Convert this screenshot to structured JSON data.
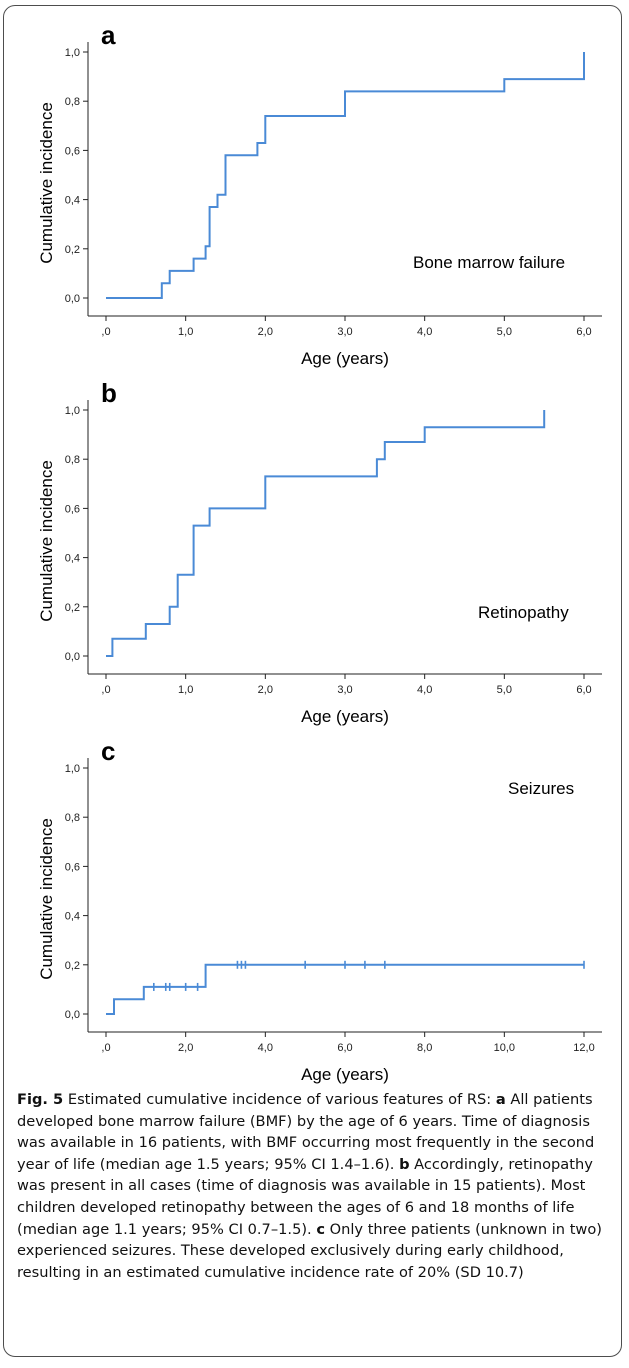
{
  "figure": {
    "caption": {
      "label": "Fig. 5",
      "segments": [
        {
          "text": " Estimated cumulative incidence of various features of RS: "
        },
        {
          "text": "a",
          "bold": true
        },
        {
          "text": " All patients developed bone marrow failure (BMF) by the age of 6 years. Time of diagnosis was available in 16 patients, with BMF occurring most frequently in the second year of life (median age 1.5 years; 95% CI 1.4–1.6). "
        },
        {
          "text": "b",
          "bold": true
        },
        {
          "text": " Accordingly, retinopathy was present in all cases (time of diagnosis was available in 15 patients). Most children developed retinopathy between the ages of 6 and 18 months of life (median age 1.1 years; 95% CI 0.7–1.5). "
        },
        {
          "text": "c",
          "bold": true
        },
        {
          "text": " Only three patients (unknown in two) experienced seizures. These developed exclusively during early childhood, resulting in an estimated cumulative incidence rate of 20% (SD 10.7)"
        }
      ]
    }
  },
  "chart_data": [
    {
      "type": "line",
      "panel_label": "a",
      "annotation": "Bone marrow failure",
      "xlabel": "Age (years)",
      "ylabel": "Cumulative incidence",
      "xlim": [
        0,
        6
      ],
      "ylim": [
        0,
        1
      ],
      "xticks": [
        ",0",
        "1,0",
        "2,0",
        "3,0",
        "4,0",
        "5,0",
        "6,0"
      ],
      "yticks": [
        "0,0",
        "0,2",
        "0,4",
        "0,6",
        "0,8",
        "1,0"
      ],
      "step": true,
      "series": [
        {
          "color": "#4a8ad6",
          "x": [
            0,
            0.7,
            0.7,
            0.8,
            0.8,
            1.1,
            1.1,
            1.25,
            1.25,
            1.3,
            1.3,
            1.4,
            1.4,
            1.5,
            1.5,
            1.9,
            1.9,
            2.0,
            2.0,
            3.0,
            3.0,
            5.0,
            5.0,
            6.0,
            6.0
          ],
          "y": [
            0,
            0,
            0.06,
            0.06,
            0.11,
            0.11,
            0.16,
            0.16,
            0.21,
            0.21,
            0.37,
            0.37,
            0.42,
            0.42,
            0.58,
            0.58,
            0.63,
            0.63,
            0.74,
            0.74,
            0.84,
            0.84,
            0.89,
            0.89,
            1.0
          ],
          "censored": []
        }
      ]
    },
    {
      "type": "line",
      "panel_label": "b",
      "annotation": "Retinopathy",
      "xlabel": "Age (years)",
      "ylabel": "Cumulative incidence",
      "xlim": [
        0,
        6
      ],
      "ylim": [
        0,
        1
      ],
      "xticks": [
        ",0",
        "1,0",
        "2,0",
        "3,0",
        "4,0",
        "5,0",
        "6,0"
      ],
      "yticks": [
        "0,0",
        "0,2",
        "0,4",
        "0,6",
        "0,8",
        "1,0"
      ],
      "step": true,
      "series": [
        {
          "color": "#4a8ad6",
          "x": [
            0,
            0.08,
            0.08,
            0.5,
            0.5,
            0.8,
            0.8,
            0.9,
            0.9,
            1.1,
            1.1,
            1.3,
            1.3,
            2.0,
            2.0,
            3.4,
            3.4,
            3.5,
            3.5,
            4.0,
            4.0,
            5.5,
            5.5
          ],
          "y": [
            0,
            0,
            0.07,
            0.07,
            0.13,
            0.13,
            0.2,
            0.2,
            0.33,
            0.33,
            0.53,
            0.53,
            0.6,
            0.6,
            0.73,
            0.73,
            0.8,
            0.8,
            0.87,
            0.87,
            0.93,
            0.93,
            1.0
          ],
          "censored": []
        }
      ]
    },
    {
      "type": "line",
      "panel_label": "c",
      "annotation": "Seizures",
      "xlabel": "Age (years)",
      "ylabel": "Cumulative incidence",
      "xlim": [
        0,
        12
      ],
      "ylim": [
        0,
        1
      ],
      "xticks": [
        ",0",
        "2,0",
        "4,0",
        "6,0",
        "8,0",
        "10,0",
        "12,0"
      ],
      "yticks": [
        "0,0",
        "0,2",
        "0,4",
        "0,6",
        "0,8",
        "1,0"
      ],
      "step": true,
      "series": [
        {
          "color": "#4a8ad6",
          "x": [
            0,
            0.2,
            0.2,
            0.95,
            0.95,
            2.5,
            2.5,
            12.0
          ],
          "y": [
            0,
            0,
            0.06,
            0.06,
            0.11,
            0.11,
            0.2,
            0.2
          ],
          "censored": [
            [
              1.2,
              0.11
            ],
            [
              1.5,
              0.11
            ],
            [
              1.6,
              0.11
            ],
            [
              2.0,
              0.11
            ],
            [
              2.3,
              0.11
            ],
            [
              3.3,
              0.2
            ],
            [
              3.4,
              0.2
            ],
            [
              3.5,
              0.2
            ],
            [
              5.0,
              0.2
            ],
            [
              6.0,
              0.2
            ],
            [
              6.5,
              0.2
            ],
            [
              7.0,
              0.2
            ],
            [
              12.0,
              0.2
            ]
          ]
        }
      ]
    }
  ]
}
